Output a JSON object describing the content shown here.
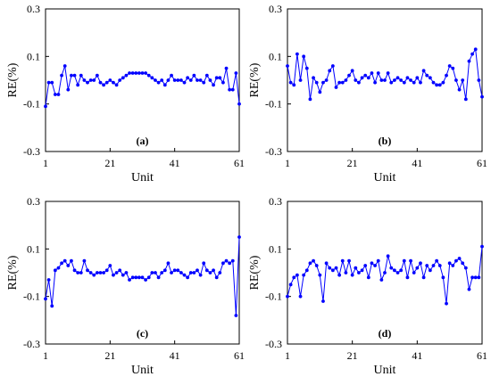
{
  "chart_data": [
    {
      "type": "line",
      "panel_label": "(a)",
      "xlabel": "Unit",
      "ylabel": "RE(%)",
      "xlim": [
        1,
        61
      ],
      "ylim": [
        -0.3,
        0.3
      ],
      "xticks": [
        "1",
        "21",
        "41",
        "61"
      ],
      "yticks": [
        "0.3",
        "0.1",
        "-0.1",
        "-0.3"
      ],
      "x": [
        1,
        2,
        3,
        4,
        5,
        6,
        7,
        8,
        9,
        10,
        11,
        12,
        13,
        14,
        15,
        16,
        17,
        18,
        19,
        20,
        21,
        22,
        23,
        24,
        25,
        26,
        27,
        28,
        29,
        30,
        31,
        32,
        33,
        34,
        35,
        36,
        37,
        38,
        39,
        40,
        41,
        42,
        43,
        44,
        45,
        46,
        47,
        48,
        49,
        50,
        51,
        52,
        53,
        54,
        55,
        56,
        57,
        58,
        59,
        60,
        61
      ],
      "series": [
        {
          "values": [
            -0.11,
            -0.01,
            -0.01,
            -0.06,
            -0.06,
            0.02,
            0.06,
            -0.04,
            0.02,
            0.02,
            -0.02,
            0.02,
            0.0,
            -0.01,
            0.0,
            0.0,
            0.02,
            -0.01,
            -0.02,
            -0.01,
            0.0,
            -0.01,
            -0.02,
            0.0,
            0.01,
            0.02,
            0.03,
            0.03,
            0.03,
            0.03,
            0.03,
            0.03,
            0.02,
            0.01,
            0.0,
            -0.01,
            0.0,
            -0.02,
            0.0,
            0.02,
            0.0,
            0.0,
            0.0,
            -0.01,
            0.01,
            0.0,
            0.02,
            0.0,
            0.0,
            -0.01,
            0.02,
            0.0,
            -0.02,
            0.01,
            0.01,
            -0.01,
            0.05,
            -0.04,
            -0.04,
            0.03,
            -0.1
          ]
        }
      ]
    },
    {
      "type": "line",
      "panel_label": "(b)",
      "xlabel": "Unit",
      "ylabel": "RE(%)",
      "xlim": [
        1,
        61
      ],
      "ylim": [
        -0.3,
        0.3
      ],
      "xticks": [
        "1",
        "21",
        "41",
        "61"
      ],
      "yticks": [
        "0.3",
        "0.1",
        "-0.1",
        "-0.3"
      ],
      "x": [
        1,
        2,
        3,
        4,
        5,
        6,
        7,
        8,
        9,
        10,
        11,
        12,
        13,
        14,
        15,
        16,
        17,
        18,
        19,
        20,
        21,
        22,
        23,
        24,
        25,
        26,
        27,
        28,
        29,
        30,
        31,
        32,
        33,
        34,
        35,
        36,
        37,
        38,
        39,
        40,
        41,
        42,
        43,
        44,
        45,
        46,
        47,
        48,
        49,
        50,
        51,
        52,
        53,
        54,
        55,
        56,
        57,
        58,
        59,
        60,
        61
      ],
      "series": [
        {
          "values": [
            0.06,
            -0.01,
            -0.02,
            0.11,
            0.0,
            0.1,
            0.05,
            -0.08,
            0.01,
            -0.01,
            -0.05,
            -0.01,
            0.0,
            0.04,
            0.06,
            -0.03,
            -0.01,
            -0.01,
            0.0,
            0.02,
            0.04,
            0.0,
            -0.01,
            0.01,
            0.02,
            0.01,
            0.03,
            -0.01,
            0.03,
            0.0,
            0.0,
            0.03,
            -0.01,
            0.0,
            0.01,
            0.0,
            -0.01,
            0.01,
            0.0,
            -0.01,
            0.01,
            -0.01,
            0.04,
            0.02,
            0.01,
            -0.01,
            -0.02,
            -0.02,
            -0.01,
            0.02,
            0.06,
            0.05,
            0.0,
            -0.04,
            0.0,
            -0.08,
            0.08,
            0.11,
            0.13,
            0.0,
            -0.07
          ]
        }
      ]
    },
    {
      "type": "line",
      "panel_label": "(c)",
      "xlabel": "Unit",
      "ylabel": "RE(%)",
      "xlim": [
        1,
        61
      ],
      "ylim": [
        -0.3,
        0.3
      ],
      "xticks": [
        "1",
        "21",
        "41",
        "61"
      ],
      "yticks": [
        "0.3",
        "0.1",
        "-0.1",
        "-0.3"
      ],
      "x": [
        1,
        2,
        3,
        4,
        5,
        6,
        7,
        8,
        9,
        10,
        11,
        12,
        13,
        14,
        15,
        16,
        17,
        18,
        19,
        20,
        21,
        22,
        23,
        24,
        25,
        26,
        27,
        28,
        29,
        30,
        31,
        32,
        33,
        34,
        35,
        36,
        37,
        38,
        39,
        40,
        41,
        42,
        43,
        44,
        45,
        46,
        47,
        48,
        49,
        50,
        51,
        52,
        53,
        54,
        55,
        56,
        57,
        58,
        59,
        60,
        61
      ],
      "series": [
        {
          "values": [
            -0.11,
            -0.03,
            -0.14,
            0.01,
            0.02,
            0.04,
            0.05,
            0.03,
            0.05,
            0.01,
            0.0,
            0.0,
            0.05,
            0.01,
            0.0,
            -0.01,
            0.0,
            0.0,
            0.0,
            0.01,
            0.03,
            -0.01,
            0.0,
            0.01,
            -0.01,
            0.0,
            -0.03,
            -0.02,
            -0.02,
            -0.02,
            -0.02,
            -0.03,
            -0.02,
            0.0,
            0.0,
            -0.02,
            0.0,
            0.01,
            0.04,
            0.0,
            0.01,
            0.01,
            0.0,
            -0.01,
            -0.02,
            0.0,
            0.0,
            0.01,
            -0.01,
            0.04,
            0.01,
            0.0,
            0.01,
            -0.02,
            0.0,
            0.04,
            0.05,
            0.04,
            0.05,
            -0.18,
            0.15
          ]
        }
      ]
    },
    {
      "type": "line",
      "panel_label": "(d)",
      "xlabel": "Unit",
      "ylabel": "RE(%)",
      "xlim": [
        1,
        61
      ],
      "ylim": [
        -0.3,
        0.3
      ],
      "xticks": [
        "1",
        "21",
        "41",
        "61"
      ],
      "yticks": [
        "0.3",
        "0.1",
        "-0.1",
        "-0.3"
      ],
      "x": [
        1,
        2,
        3,
        4,
        5,
        6,
        7,
        8,
        9,
        10,
        11,
        12,
        13,
        14,
        15,
        16,
        17,
        18,
        19,
        20,
        21,
        22,
        23,
        24,
        25,
        26,
        27,
        28,
        29,
        30,
        31,
        32,
        33,
        34,
        35,
        36,
        37,
        38,
        39,
        40,
        41,
        42,
        43,
        44,
        45,
        46,
        47,
        48,
        49,
        50,
        51,
        52,
        53,
        54,
        55,
        56,
        57,
        58,
        59,
        60,
        61
      ],
      "series": [
        {
          "values": [
            -0.1,
            -0.05,
            -0.02,
            -0.01,
            -0.1,
            -0.01,
            0.01,
            0.04,
            0.05,
            0.03,
            -0.01,
            -0.12,
            0.04,
            0.02,
            0.01,
            0.02,
            -0.01,
            0.05,
            0.0,
            0.05,
            -0.01,
            0.02,
            0.0,
            0.01,
            0.03,
            -0.02,
            0.04,
            0.03,
            0.05,
            -0.03,
            0.0,
            0.07,
            0.02,
            0.01,
            0.0,
            0.01,
            0.05,
            -0.02,
            0.05,
            0.0,
            0.02,
            0.04,
            -0.02,
            0.03,
            0.01,
            0.03,
            0.05,
            0.03,
            -0.02,
            -0.13,
            0.04,
            0.03,
            0.05,
            0.06,
            0.04,
            0.02,
            -0.07,
            -0.02,
            -0.02,
            -0.02,
            0.11
          ]
        }
      ]
    }
  ]
}
